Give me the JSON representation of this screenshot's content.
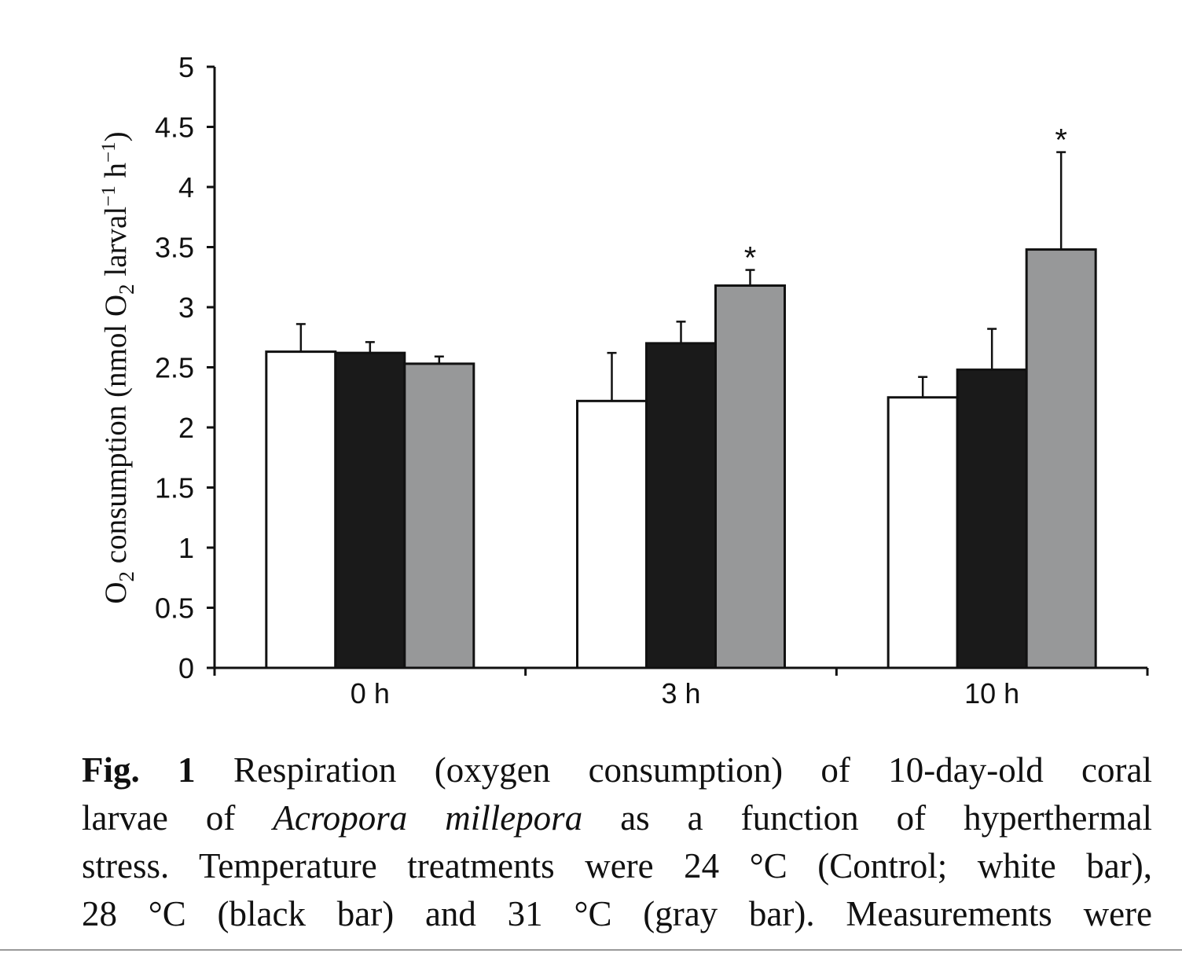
{
  "chart_data": {
    "type": "bar",
    "categories": [
      "0 h",
      "3 h",
      "10 h"
    ],
    "series": [
      {
        "color": "#ffffff",
        "values": [
          2.63,
          2.22,
          2.25
        ],
        "errors": [
          0.23,
          0.4,
          0.17
        ]
      },
      {
        "color": "#1a1a1a",
        "values": [
          2.62,
          2.7,
          2.48
        ],
        "errors": [
          0.09,
          0.18,
          0.34
        ]
      },
      {
        "color": "#979899",
        "values": [
          2.53,
          3.18,
          3.48
        ],
        "errors": [
          0.06,
          0.13,
          0.81
        ]
      }
    ],
    "significance": [
      {
        "category": 1,
        "series": 2,
        "mark": "*"
      },
      {
        "category": 2,
        "series": 2,
        "mark": "*"
      }
    ],
    "ylim": [
      0,
      5
    ],
    "yticks": [
      "0",
      "0.5",
      "1",
      "1.5",
      "2",
      "2.5",
      "3",
      "3.5",
      "4",
      "4.5",
      "5"
    ],
    "ylabel": {
      "o": "O",
      "o_sub": "2",
      "mid": " consumption (nmol O",
      "mid_sub": "2",
      "larval": " larval",
      "larval_sup": "−1",
      "h": " h",
      "h_sup": "−1",
      "close": ")"
    },
    "grid": false
  },
  "caption": {
    "fig_label": "Fig. 1",
    "line1_rest": " Respiration (oxygen consumption) of 10-day-old coral",
    "line2_start": "larvae of ",
    "line2_species": "Acropora millepora",
    "line2_end": " as a function of hyperthermal",
    "line3": "stress. Temperature treatments were 24 °C (Control; white bar),",
    "line4": "28 °C (black bar) and 31 °C (gray bar). Measurements were"
  }
}
